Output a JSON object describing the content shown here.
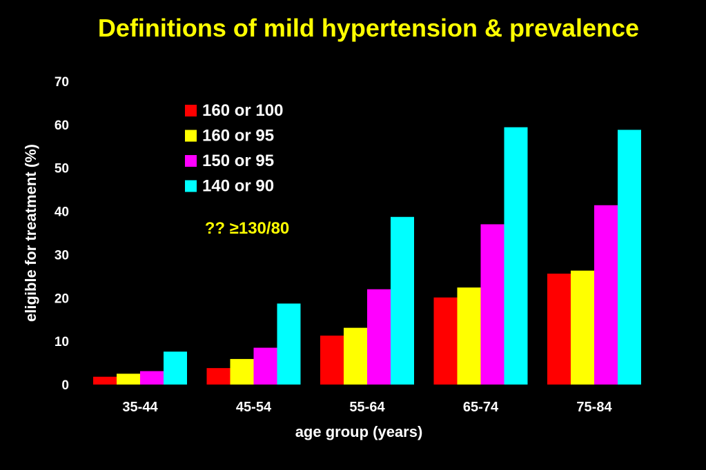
{
  "colors": {
    "background": "#000000",
    "title": "#ffff00",
    "annotation": "#ffff00",
    "text": "#ffffff"
  },
  "chart_data": {
    "type": "bar",
    "title": "Definitions of mild hypertension & prevalence",
    "xlabel": "age group (years)",
    "ylabel": "eligible for treatment (%)",
    "ylim": [
      0,
      70
    ],
    "yticks": [
      0,
      10,
      20,
      30,
      40,
      50,
      60,
      70
    ],
    "grid": false,
    "legend_position": "top-center",
    "categories": [
      "35-44",
      "45-54",
      "55-64",
      "65-74",
      "75-84"
    ],
    "series": [
      {
        "name": "160 or 100",
        "color": "#ff0000",
        "values": [
          1.8,
          3.8,
          11.3,
          20.1,
          25.6
        ]
      },
      {
        "name": "160 or 95",
        "color": "#ffff00",
        "values": [
          2.5,
          5.9,
          13.1,
          22.4,
          26.3
        ]
      },
      {
        "name": "150 or 95",
        "color": "#ff00ff",
        "values": [
          3.1,
          8.5,
          22.0,
          37.0,
          41.4
        ]
      },
      {
        "name": "140 or 90",
        "color": "#00ffff",
        "values": [
          7.6,
          18.7,
          38.7,
          59.4,
          58.8
        ]
      }
    ],
    "annotation": "?? ≥130/80"
  }
}
